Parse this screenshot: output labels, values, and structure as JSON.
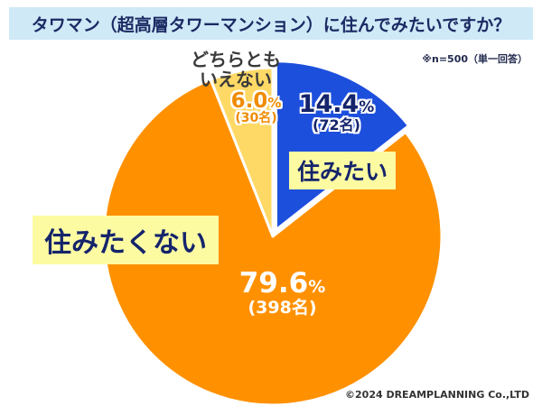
{
  "header": {
    "title": "タワマン（超高層タワーマンション）に住んでみたいですか？",
    "note": "※n=500（単一回答）"
  },
  "footer": {
    "copyright": "©2024 DREAMPLANNING Co.,LTD"
  },
  "colors": {
    "banner_bg": "#cfe9f7",
    "banner_text": "#1b2a63",
    "highlight_bg": "#fdfba2",
    "navy_text": "#15246b"
  },
  "chart_data": {
    "type": "pie",
    "title": "タワマン（超高層タワーマンション）に住んでみたいですか？",
    "sample_note": "※n=500（単一回答）",
    "n": 500,
    "start_angle_deg": 0,
    "direction": "clockwise",
    "percent_unit": "%",
    "slices": [
      {
        "id": "sumitai",
        "label": "住みたい",
        "percent": 14.4,
        "percent_display": "14.4",
        "count": 72,
        "count_display": "(72名)",
        "color": "#1d4fdd",
        "explode": 8
      },
      {
        "id": "sumitakunai",
        "label": "住みたくない",
        "percent": 79.6,
        "percent_display": "79.6",
        "count": 398,
        "count_display": "(398名)",
        "color": "#ff9100",
        "explode": 0
      },
      {
        "id": "dochira",
        "label": "どちらともいえない",
        "label_line1": "どちらとも",
        "label_line2": "いえない",
        "percent": 6.0,
        "percent_display": "6.0",
        "count": 30,
        "count_display": "(30名)",
        "color": "#ffd966",
        "explode": 0
      }
    ]
  }
}
